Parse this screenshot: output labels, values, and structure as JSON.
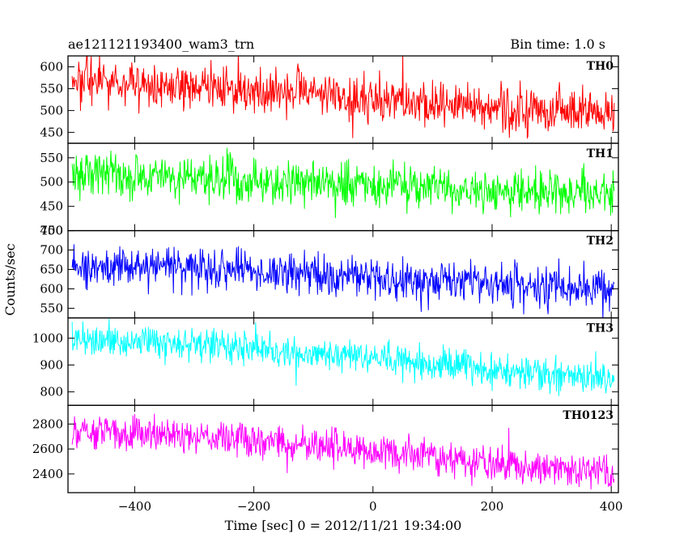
{
  "title_left": "ae121121193400_wam3_trn",
  "title_right": "Bin time: 1.0 s",
  "xlabel": "Time [sec] 0 = 2012/11/21 19:34:00",
  "ylabel": "Counts/sec",
  "chart_data": {
    "type": "line",
    "x_range": [
      -505,
      405
    ],
    "xlim": [
      -512,
      412
    ],
    "x_ticks": [
      -400,
      -200,
      0,
      200,
      400
    ],
    "bin_time_s": 1.0,
    "grid": false,
    "panels": [
      {
        "name": "TH0",
        "color": "#ff0000",
        "ylim": [
          425,
          625
        ],
        "y_ticks": [
          450,
          500,
          550,
          600
        ],
        "trend": [
          [
            -500,
            570
          ],
          [
            -300,
            555
          ],
          [
            -100,
            540
          ],
          [
            0,
            530
          ],
          [
            100,
            515
          ],
          [
            200,
            505
          ],
          [
            300,
            498
          ],
          [
            400,
            490
          ]
        ],
        "noise": 25
      },
      {
        "name": "TH1",
        "color": "#00ff00",
        "ylim": [
          400,
          580
        ],
        "y_ticks": [
          400,
          450,
          500,
          550
        ],
        "trend": [
          [
            -500,
            515
          ],
          [
            -300,
            508
          ],
          [
            -100,
            498
          ],
          [
            0,
            492
          ],
          [
            100,
            488
          ],
          [
            200,
            482
          ],
          [
            300,
            480
          ],
          [
            400,
            478
          ]
        ],
        "noise": 23
      },
      {
        "name": "TH2",
        "color": "#0000ff",
        "ylim": [
          525,
          750
        ],
        "y_ticks": [
          550,
          600,
          650,
          700,
          750
        ],
        "trend": [
          [
            -500,
            665
          ],
          [
            -300,
            655
          ],
          [
            -100,
            640
          ],
          [
            0,
            625
          ],
          [
            100,
            618
          ],
          [
            200,
            610
          ],
          [
            300,
            605
          ],
          [
            400,
            600
          ]
        ],
        "noise": 26
      },
      {
        "name": "TH3",
        "color": "#00ffff",
        "ylim": [
          750,
          1075
        ],
        "y_ticks": [
          800,
          900,
          1000
        ],
        "trend": [
          [
            -500,
            1000
          ],
          [
            -300,
            975
          ],
          [
            -100,
            945
          ],
          [
            0,
            925
          ],
          [
            100,
            905
          ],
          [
            200,
            880
          ],
          [
            300,
            865
          ],
          [
            400,
            850
          ]
        ],
        "noise": 32
      },
      {
        "name": "TH0123",
        "color": "#ff00ff",
        "ylim": [
          2250,
          2950
        ],
        "y_ticks": [
          2400,
          2600,
          2800
        ],
        "trend": [
          [
            -500,
            2760
          ],
          [
            -300,
            2700
          ],
          [
            -100,
            2630
          ],
          [
            0,
            2580
          ],
          [
            100,
            2540
          ],
          [
            200,
            2490
          ],
          [
            300,
            2450
          ],
          [
            400,
            2410
          ]
        ],
        "noise": 70
      }
    ]
  }
}
